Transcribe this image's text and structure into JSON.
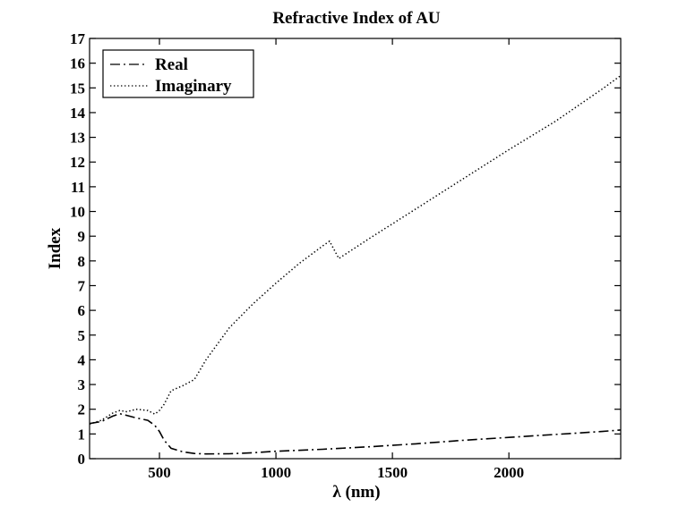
{
  "chart_data": {
    "type": "line",
    "title": "Refractive Index of AU",
    "xlabel": "λ (nm)",
    "ylabel": "Index",
    "xlim": [
      200,
      2480
    ],
    "ylim": [
      0,
      17
    ],
    "xticks": [
      500,
      1000,
      1500,
      2000
    ],
    "yticks": [
      0,
      1,
      2,
      3,
      4,
      5,
      6,
      7,
      8,
      9,
      10,
      11,
      12,
      13,
      14,
      15,
      16,
      17
    ],
    "grid": false,
    "legend_position": "top-left",
    "series": [
      {
        "name": "Real",
        "line_style": "dash-dot",
        "color": "#000000",
        "points": [
          [
            200,
            1.42
          ],
          [
            250,
            1.5
          ],
          [
            300,
            1.72
          ],
          [
            330,
            1.82
          ],
          [
            360,
            1.75
          ],
          [
            400,
            1.65
          ],
          [
            450,
            1.55
          ],
          [
            480,
            1.35
          ],
          [
            500,
            1.1
          ],
          [
            520,
            0.75
          ],
          [
            550,
            0.42
          ],
          [
            600,
            0.28
          ],
          [
            650,
            0.21
          ],
          [
            700,
            0.19
          ],
          [
            800,
            0.2
          ],
          [
            900,
            0.24
          ],
          [
            1000,
            0.3
          ],
          [
            1200,
            0.38
          ],
          [
            1400,
            0.48
          ],
          [
            1600,
            0.6
          ],
          [
            1800,
            0.74
          ],
          [
            2000,
            0.86
          ],
          [
            2200,
            0.98
          ],
          [
            2400,
            1.1
          ],
          [
            2480,
            1.16
          ]
        ]
      },
      {
        "name": "Imaginary",
        "line_style": "dotted",
        "color": "#000000",
        "points": [
          [
            200,
            1.4
          ],
          [
            250,
            1.55
          ],
          [
            300,
            1.85
          ],
          [
            330,
            1.95
          ],
          [
            360,
            1.9
          ],
          [
            400,
            2.0
          ],
          [
            450,
            1.95
          ],
          [
            480,
            1.8
          ],
          [
            500,
            1.95
          ],
          [
            520,
            2.2
          ],
          [
            550,
            2.75
          ],
          [
            600,
            2.95
          ],
          [
            650,
            3.2
          ],
          [
            700,
            4.0
          ],
          [
            800,
            5.3
          ],
          [
            900,
            6.25
          ],
          [
            1000,
            7.1
          ],
          [
            1100,
            7.9
          ],
          [
            1200,
            8.6
          ],
          [
            1230,
            8.8
          ],
          [
            1270,
            8.1
          ],
          [
            1400,
            8.9
          ],
          [
            1600,
            10.1
          ],
          [
            1800,
            11.3
          ],
          [
            2000,
            12.5
          ],
          [
            2200,
            13.65
          ],
          [
            2400,
            14.95
          ],
          [
            2480,
            15.5
          ]
        ]
      }
    ]
  }
}
